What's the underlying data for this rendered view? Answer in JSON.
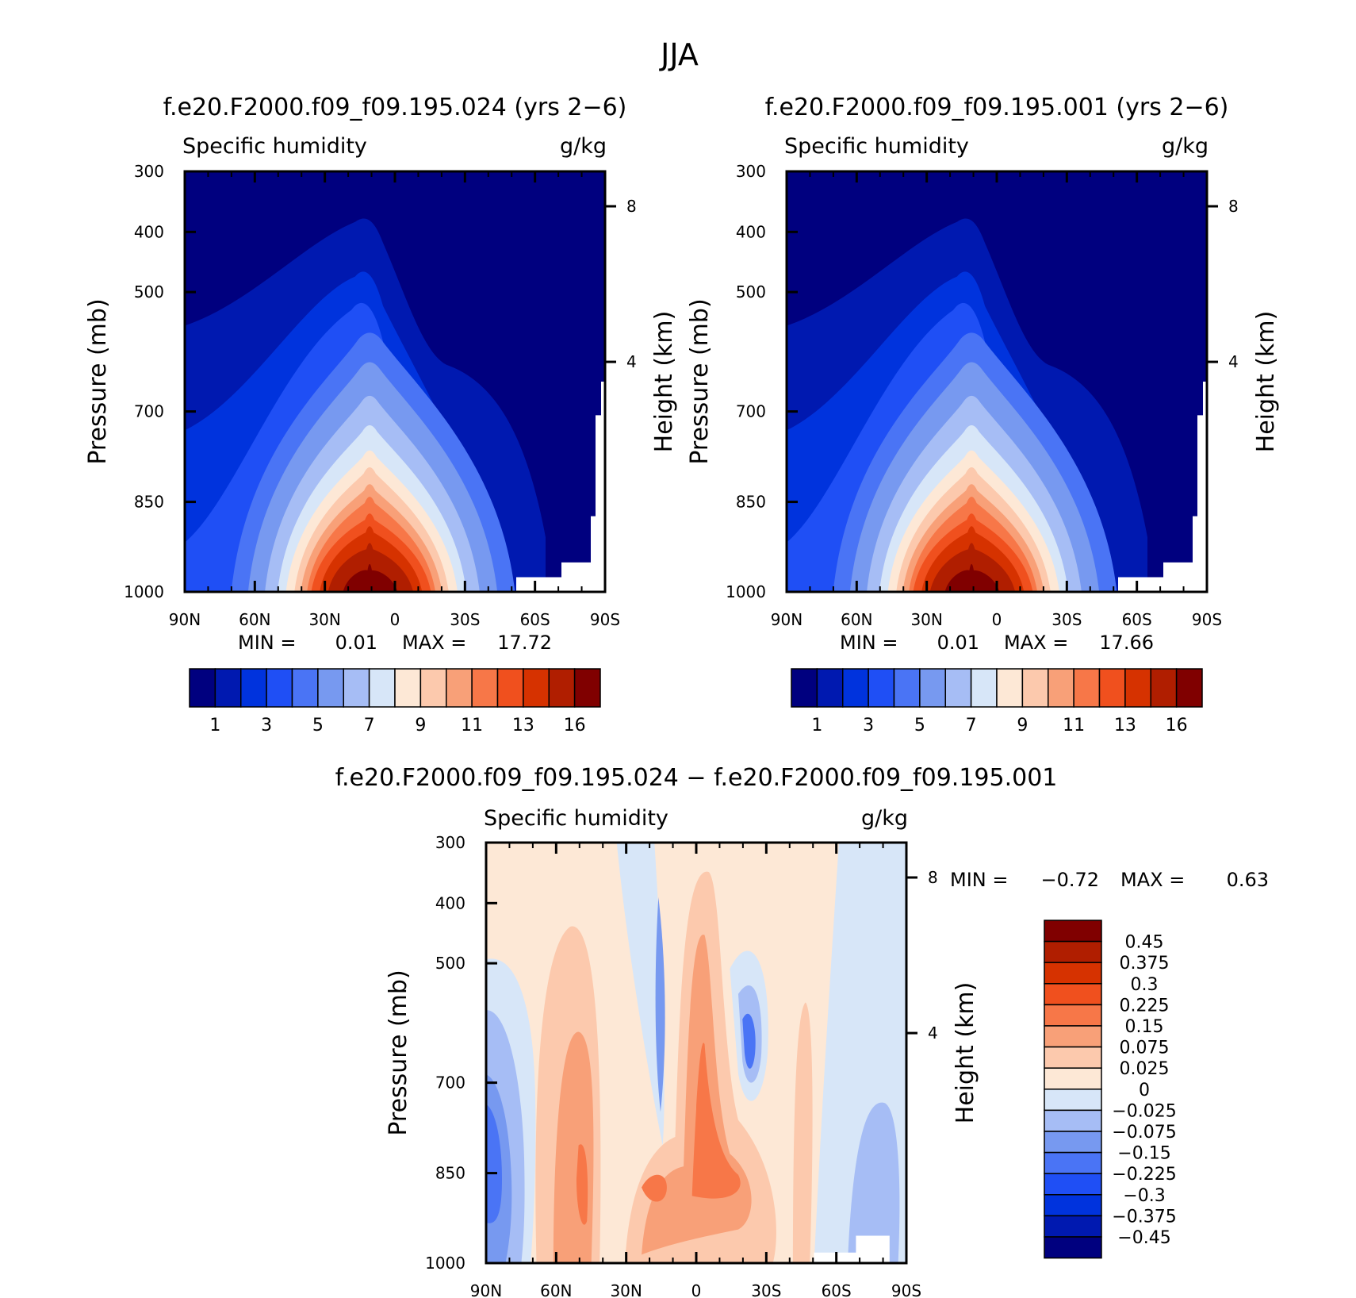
{
  "figure": {
    "title": "JJA"
  },
  "colors": {
    "abs_palette": [
      "#00007f",
      "#0019b0",
      "#0033dd",
      "#1f4ff5",
      "#4a74f5",
      "#7799f0",
      "#a6bdf5",
      "#d7e6f8",
      "#fde8d6",
      "#fcc9ad",
      "#f8a078",
      "#f77748",
      "#f0501e",
      "#d63200",
      "#b01e00",
      "#800000"
    ],
    "diff_palette": [
      "#00007f",
      "#0019b0",
      "#0033dd",
      "#1f4ff5",
      "#4a74f5",
      "#7799f0",
      "#a6bdf5",
      "#d7e6f8",
      "#fde8d6",
      "#fcc9ad",
      "#f8a078",
      "#f77748",
      "#f0501e",
      "#d63200",
      "#b01e00",
      "#800000"
    ]
  },
  "chart_data": [
    {
      "id": "case",
      "type": "heatmap",
      "title": "f.e20.F2000.f09_f09.195.024 (yrs 2−6)",
      "left_label": "Specific humidity",
      "right_label": "g/kg",
      "ylabel": "Pressure (mb)",
      "y2label": "Height (km)",
      "x_ticks": [
        "90N",
        "60N",
        "30N",
        "0",
        "30S",
        "60S",
        "90S"
      ],
      "y_ticks": [
        "300",
        "400",
        "500",
        "700",
        "850",
        "1000"
      ],
      "y2_ticks": [
        "8",
        "4"
      ],
      "min_label": "MIN =",
      "min_value": "0.01",
      "max_label": "MAX =",
      "max_value": "17.72",
      "colorbar_labels": [
        "1",
        "3",
        "5",
        "7",
        "9",
        "11",
        "13",
        "16"
      ]
    },
    {
      "id": "control",
      "type": "heatmap",
      "title": "f.e20.F2000.f09_f09.195.001 (yrs 2−6)",
      "left_label": "Specific humidity",
      "right_label": "g/kg",
      "ylabel": "Pressure (mb)",
      "y2label": "Height (km)",
      "x_ticks": [
        "90N",
        "60N",
        "30N",
        "0",
        "30S",
        "60S",
        "90S"
      ],
      "y_ticks": [
        "300",
        "400",
        "500",
        "700",
        "850",
        "1000"
      ],
      "y2_ticks": [
        "8",
        "4"
      ],
      "min_label": "MIN =",
      "min_value": "0.01",
      "max_label": "MAX =",
      "max_value": "17.66",
      "colorbar_labels": [
        "1",
        "3",
        "5",
        "7",
        "9",
        "11",
        "13",
        "16"
      ]
    },
    {
      "id": "diff",
      "type": "heatmap",
      "title": "f.e20.F2000.f09_f09.195.024 − f.e20.F2000.f09_f09.195.001",
      "left_label": "Specific humidity",
      "right_label": "g/kg",
      "ylabel": "Pressure (mb)",
      "y2label": "Height (km)",
      "x_ticks": [
        "90N",
        "60N",
        "30N",
        "0",
        "30S",
        "60S",
        "90S"
      ],
      "y_ticks": [
        "300",
        "400",
        "500",
        "700",
        "850",
        "1000"
      ],
      "y2_ticks": [
        "8",
        "4"
      ],
      "min_label": "MIN =",
      "min_value": "−0.72",
      "max_label": "MAX =",
      "max_value": "0.63",
      "colorbar_labels": [
        "0.45",
        "0.375",
        "0.3",
        "0.225",
        "0.15",
        "0.075",
        "0.025",
        "0",
        "−0.025",
        "−0.075",
        "−0.15",
        "−0.225",
        "−0.3",
        "−0.375",
        "−0.45"
      ]
    }
  ]
}
